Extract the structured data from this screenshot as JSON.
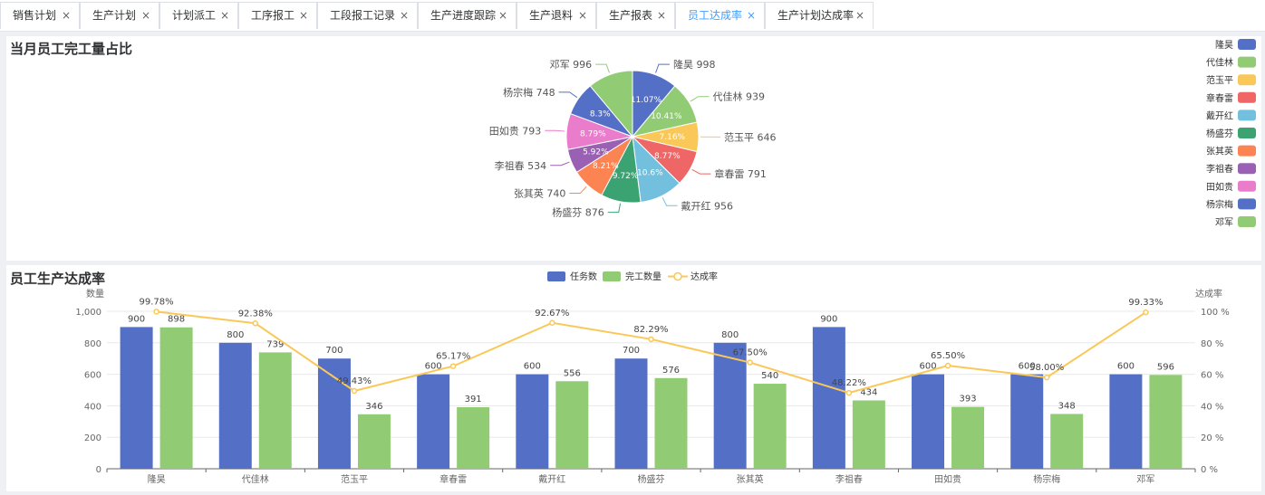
{
  "tabs": [
    {
      "label": "销售计划",
      "active": false
    },
    {
      "label": "生产计划",
      "active": false
    },
    {
      "label": "计划派工",
      "active": false
    },
    {
      "label": "工序报工",
      "active": false
    },
    {
      "label": "工段报工记录",
      "active": false
    },
    {
      "label": "生产进度跟踪",
      "active": false
    },
    {
      "label": "生产退料",
      "active": false
    },
    {
      "label": "生产报表",
      "active": false
    },
    {
      "label": "员工达成率",
      "active": true
    },
    {
      "label": "生产计划达成率",
      "active": false
    }
  ],
  "close_glyph": "×",
  "colors": {
    "accent": "#409eff",
    "palette": [
      "#5470c6",
      "#91cc75",
      "#fac858",
      "#ee6666",
      "#73c0de",
      "#3ba272",
      "#fc8452",
      "#9a60b4",
      "#ea7ccc",
      "#5470c6",
      "#91cc75"
    ],
    "rate_line": "#fac858"
  },
  "chart_data": [
    {
      "type": "pie",
      "title": "当月员工完工量占比",
      "slices": [
        {
          "name": "隆昊",
          "value": 998,
          "percent": "11.07%"
        },
        {
          "name": "代佳林",
          "value": 939,
          "percent": "10.41%"
        },
        {
          "name": "范玉平",
          "value": 646,
          "percent": "7.16%"
        },
        {
          "name": "章春雷",
          "value": 791,
          "percent": "8.77%"
        },
        {
          "name": "戴开红",
          "value": 956,
          "percent": "10.6%"
        },
        {
          "name": "杨盛芬",
          "value": 876,
          "percent": "9.72%"
        },
        {
          "name": "张其英",
          "value": 740,
          "percent": "8.21%"
        },
        {
          "name": "李祖春",
          "value": 534,
          "percent": "5.92%"
        },
        {
          "name": "田如贵",
          "value": 793,
          "percent": "8.79%"
        },
        {
          "name": "杨宗梅",
          "value": 748,
          "percent": "8.3%"
        },
        {
          "name": "邓军",
          "value": 996,
          "percent": ""
        }
      ],
      "legend_position": "right"
    },
    {
      "type": "bar",
      "title": "员工生产达成率",
      "categories": [
        "隆昊",
        "代佳林",
        "范玉平",
        "章春雷",
        "戴开红",
        "杨盛芬",
        "张其英",
        "李祖春",
        "田如贵",
        "杨宗梅",
        "邓军"
      ],
      "series": [
        {
          "name": "任务数",
          "type": "bar",
          "values": [
            900,
            800,
            700,
            600,
            600,
            700,
            800,
            900,
            600,
            600,
            600
          ]
        },
        {
          "name": "完工数量",
          "type": "bar",
          "values": [
            898,
            739,
            346,
            391,
            556,
            576,
            540,
            434,
            393,
            348,
            596
          ]
        },
        {
          "name": "达成率",
          "type": "line",
          "values": [
            99.78,
            92.38,
            49.43,
            65.17,
            92.67,
            82.29,
            67.5,
            48.22,
            65.5,
            58.0,
            99.33
          ],
          "labels": [
            "99.78%",
            "92.38%",
            "49.43%",
            "65.17%",
            "92.67%",
            "82.29%",
            "67.50%",
            "48.22%",
            "65.50%",
            "58.00%",
            "99.33%"
          ]
        }
      ],
      "ylabel": "数量",
      "ylabel_right": "达成率",
      "ylim": [
        0,
        1000
      ],
      "y_ticks": [
        "0",
        "200",
        "400",
        "600",
        "800",
        "1,000"
      ],
      "ylim_right": [
        0,
        100
      ],
      "y_ticks_right": [
        "0 %",
        "20 %",
        "40 %",
        "60 %",
        "80 %",
        "100 %"
      ],
      "legend_position": "top-center",
      "grid": true
    }
  ]
}
